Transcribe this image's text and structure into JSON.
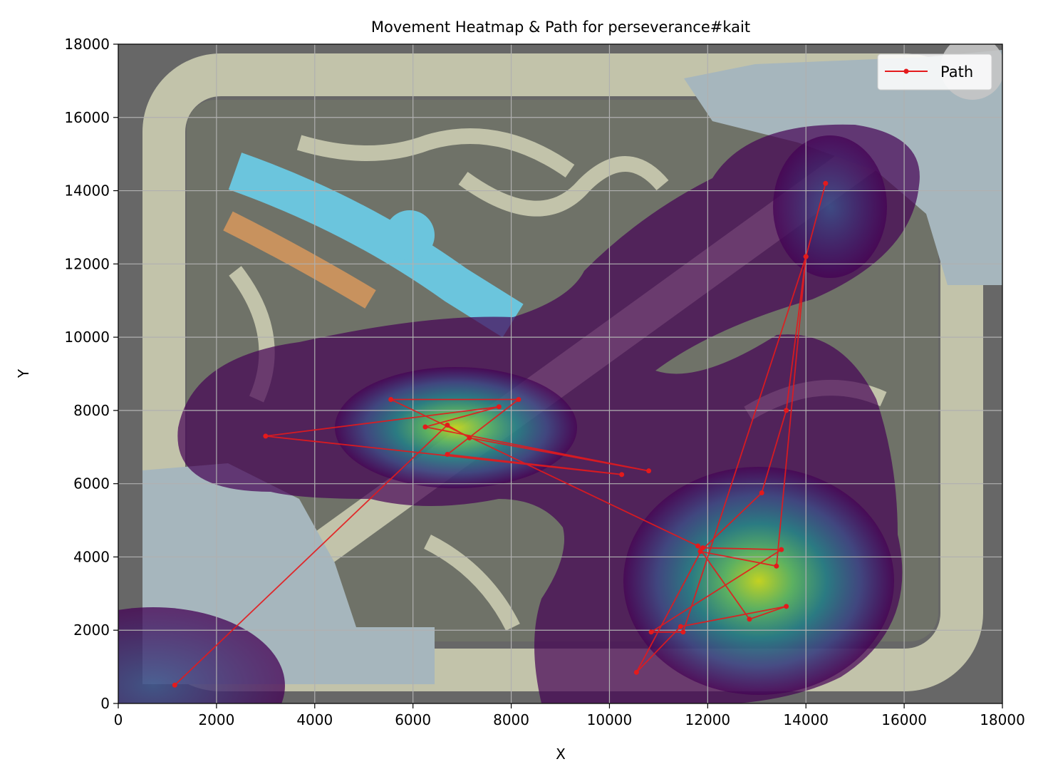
{
  "chart_data": {
    "type": "line",
    "title": "Movement Heatmap & Path for perseverance#kait",
    "xlabel": "X",
    "ylabel": "Y",
    "xlim": [
      0,
      18000
    ],
    "ylim": [
      0,
      18000
    ],
    "xticks": [
      0,
      2000,
      4000,
      6000,
      8000,
      10000,
      12000,
      14000,
      16000,
      18000
    ],
    "yticks": [
      0,
      2000,
      4000,
      6000,
      8000,
      10000,
      12000,
      14000,
      16000,
      18000
    ],
    "grid": true,
    "legend": {
      "position": "top-right",
      "entries": [
        "Path"
      ]
    },
    "colors": {
      "path": "#e41a1c",
      "background": "#676767",
      "lane": "#c2c3aa",
      "river": "#6bc5dd",
      "base": "#a6b6bd",
      "heat_low": "#440154",
      "heat_mid": "#21918c",
      "heat_high": "#cde11d"
    },
    "series": [
      {
        "name": "Path",
        "x": [
          1150,
          6700,
          7150,
          10800,
          6250,
          7750,
          3000,
          10250,
          6700,
          8150,
          5550,
          11800,
          12850,
          13600,
          11450,
          10550,
          11900,
          13500,
          10850,
          11500,
          14000,
          13400,
          11850,
          13100,
          13600,
          14000,
          14400
        ],
        "y": [
          500,
          7600,
          7250,
          6350,
          7550,
          8100,
          7300,
          6250,
          6800,
          8300,
          8300,
          4300,
          2300,
          2650,
          2100,
          850,
          4250,
          4200,
          1950,
          1950,
          12200,
          3750,
          4150,
          5750,
          8000,
          12200,
          14200
        ]
      }
    ],
    "heatmap_hotspots": [
      {
        "x": 7000,
        "y": 7500,
        "level": "high"
      },
      {
        "x": 12800,
        "y": 3300,
        "level": "high"
      },
      {
        "x": 14200,
        "y": 13500,
        "level": "low"
      },
      {
        "x": 600,
        "y": 500,
        "level": "low"
      }
    ]
  }
}
